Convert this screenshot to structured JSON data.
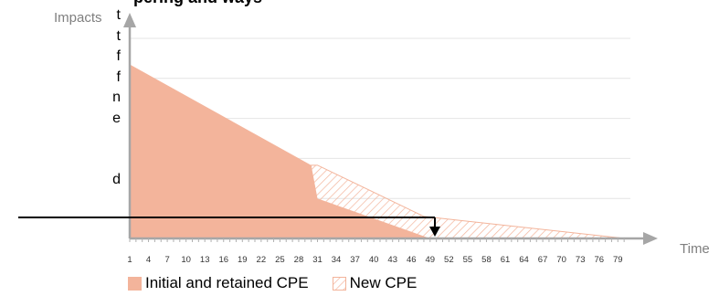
{
  "page": {
    "title_fragment": "pering and ways",
    "left_text_fragments": [
      "t",
      "t",
      "f",
      "f",
      "n",
      "e",
      "d"
    ]
  },
  "chart_data": {
    "type": "area",
    "ylabel": "Impacts",
    "xlabel": "Time",
    "x_ticks": [
      "1",
      "4",
      "7",
      "10",
      "13",
      "16",
      "19",
      "22",
      "25",
      "28",
      "31",
      "34",
      "37",
      "40",
      "43",
      "46",
      "49",
      "52",
      "55",
      "58",
      "61",
      "64",
      "67",
      "70",
      "73",
      "76",
      "79"
    ],
    "xlim": [
      1,
      81
    ],
    "ylim": [
      0,
      5
    ],
    "grid": true,
    "legend_position": "bottom",
    "series": [
      {
        "name": "Initial  and retained CPE",
        "color": "#f3b49b",
        "fill": "solid",
        "points": [
          [
            1,
            4.35
          ],
          [
            30,
            1.83
          ],
          [
            31,
            1.0
          ],
          [
            49,
            0.0
          ]
        ]
      },
      {
        "name": "New CPE",
        "color": "#f3b49b",
        "fill": "hatched",
        "points": [
          [
            1,
            0
          ],
          [
            30,
            0
          ],
          [
            30,
            1.83
          ],
          [
            31,
            1.83
          ],
          [
            48,
            0.55
          ],
          [
            79,
            0.02
          ],
          [
            80,
            0
          ]
        ]
      }
    ],
    "annotation_arrow": {
      "from_x": -20,
      "to_x": 49,
      "y": 0.5
    }
  }
}
